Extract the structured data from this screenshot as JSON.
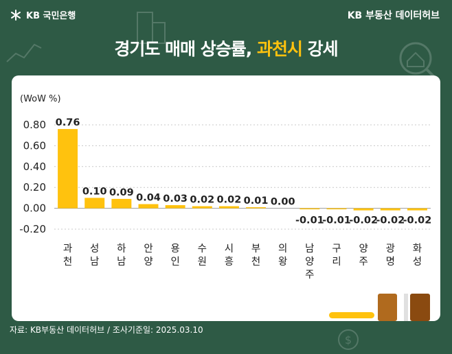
{
  "header": {
    "brand_left": "KB 국민은행",
    "brand_right": "KB 부동산 데이터허브",
    "title_main": "경기도 매매 상승률, ",
    "title_highlight": "과천시",
    "title_tail": " 강세"
  },
  "footer": {
    "source": "자료: KB부동산 데이터허브 / 조사기준일: 2025.03.10"
  },
  "colors": {
    "background": "#2e5a45",
    "bar": "#ffc20e",
    "highlight": "#ffc20e"
  },
  "chart_data": {
    "type": "bar",
    "title": "경기도 매매 상승률, 과천시 강세",
    "ylabel": "(WoW %)",
    "xlabel": "",
    "ylim": [
      -0.2,
      0.8
    ],
    "yticks": [
      "0.80",
      "0.60",
      "0.40",
      "0.20",
      "0.00",
      "-0.20"
    ],
    "ytick_values": [
      0.8,
      0.6,
      0.4,
      0.2,
      0.0,
      -0.2
    ],
    "grid": true,
    "categories": [
      "과천",
      "성남",
      "하남",
      "안양",
      "용인",
      "수원",
      "시흥",
      "부천",
      "의왕",
      "남양주",
      "구리",
      "양주",
      "광명",
      "화성"
    ],
    "values": [
      0.76,
      0.1,
      0.09,
      0.04,
      0.03,
      0.02,
      0.02,
      0.01,
      0.0,
      -0.01,
      -0.01,
      -0.02,
      -0.02,
      -0.02
    ],
    "value_labels": [
      "0.76",
      "0.10",
      "0.09",
      "0.04",
      "0.03",
      "0.02",
      "0.02",
      "0.01",
      "0.00",
      "-0.01",
      "-0.01",
      "-0.02",
      "-0.02",
      "-0.02"
    ]
  }
}
